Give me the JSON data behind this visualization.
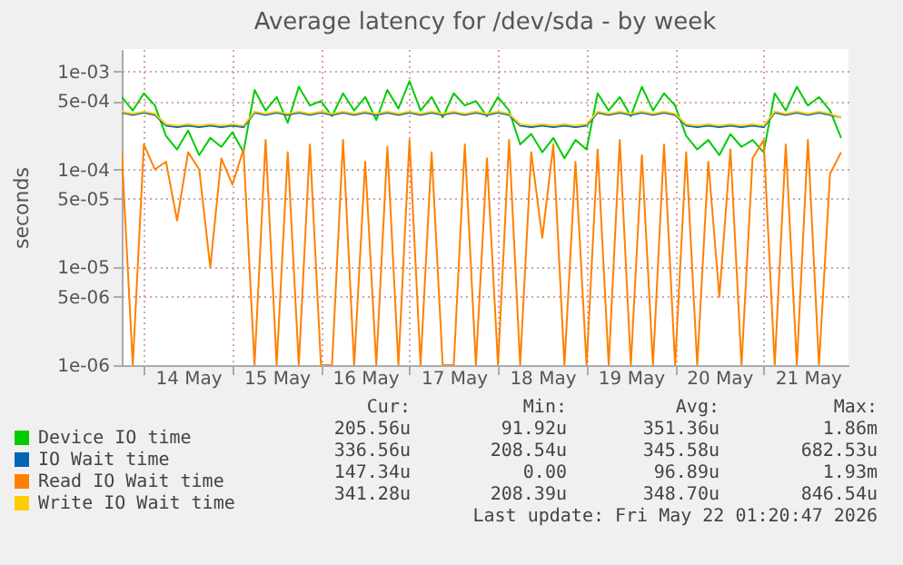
{
  "chart_data": {
    "type": "line",
    "title": "Average latency for /dev/sda - by week",
    "ylabel": "seconds",
    "log": "y",
    "grid": true,
    "legend": "bottom left",
    "marker": "none",
    "line_style": "solid",
    "ylim": [
      1e-06,
      0.0017
    ],
    "yticks": [
      {
        "value": 1e-06,
        "label": "1e-06"
      },
      {
        "value": 5e-06,
        "label": "5e-06"
      },
      {
        "value": 1e-05,
        "label": "1e-05"
      },
      {
        "value": 5e-05,
        "label": "5e-05"
      },
      {
        "value": 0.0001,
        "label": "1e-04"
      },
      {
        "value": 0.0005,
        "label": "5e-04"
      },
      {
        "value": 0.001,
        "label": "1e-03"
      }
    ],
    "xlim": [
      "2026-05-13T18:00",
      "2026-05-21T23:00"
    ],
    "xticks": [
      {
        "value": "2026-05-14T00:00",
        "label": null
      },
      {
        "value": "2026-05-14T12:00",
        "label": "14 May"
      },
      {
        "value": "2026-05-15T00:00",
        "label": null
      },
      {
        "value": "2026-05-15T12:00",
        "label": "15 May"
      },
      {
        "value": "2026-05-16T00:00",
        "label": null
      },
      {
        "value": "2026-05-16T12:00",
        "label": "16 May"
      },
      {
        "value": "2026-05-17T00:00",
        "label": null
      },
      {
        "value": "2026-05-17T12:00",
        "label": "17 May"
      },
      {
        "value": "2026-05-18T00:00",
        "label": null
      },
      {
        "value": "2026-05-18T12:00",
        "label": "18 May"
      },
      {
        "value": "2026-05-19T00:00",
        "label": null
      },
      {
        "value": "2026-05-19T12:00",
        "label": "19 May"
      },
      {
        "value": "2026-05-20T00:00",
        "label": null
      },
      {
        "value": "2026-05-20T12:00",
        "label": "20 May"
      },
      {
        "value": "2026-05-21T00:00",
        "label": null
      },
      {
        "value": "2026-05-21T12:00",
        "label": "21 May"
      }
    ],
    "x": [
      "2026-05-13T18:00",
      "2026-05-13T21:00",
      "2026-05-14T00:00",
      "2026-05-14T03:00",
      "2026-05-14T06:00",
      "2026-05-14T09:00",
      "2026-05-14T12:00",
      "2026-05-14T15:00",
      "2026-05-14T18:00",
      "2026-05-14T21:00",
      "2026-05-15T00:00",
      "2026-05-15T03:00",
      "2026-05-15T06:00",
      "2026-05-15T09:00",
      "2026-05-15T12:00",
      "2026-05-15T15:00",
      "2026-05-15T18:00",
      "2026-05-15T21:00",
      "2026-05-16T00:00",
      "2026-05-16T03:00",
      "2026-05-16T06:00",
      "2026-05-16T09:00",
      "2026-05-16T12:00",
      "2026-05-16T15:00",
      "2026-05-16T18:00",
      "2026-05-16T21:00",
      "2026-05-17T00:00",
      "2026-05-17T03:00",
      "2026-05-17T06:00",
      "2026-05-17T09:00",
      "2026-05-17T12:00",
      "2026-05-17T15:00",
      "2026-05-17T18:00",
      "2026-05-17T21:00",
      "2026-05-18T00:00",
      "2026-05-18T03:00",
      "2026-05-18T06:00",
      "2026-05-18T09:00",
      "2026-05-18T12:00",
      "2026-05-18T15:00",
      "2026-05-18T18:00",
      "2026-05-18T21:00",
      "2026-05-19T00:00",
      "2026-05-19T03:00",
      "2026-05-19T06:00",
      "2026-05-19T09:00",
      "2026-05-19T12:00",
      "2026-05-19T15:00",
      "2026-05-19T18:00",
      "2026-05-19T21:00",
      "2026-05-20T00:00",
      "2026-05-20T03:00",
      "2026-05-20T06:00",
      "2026-05-20T09:00",
      "2026-05-20T12:00",
      "2026-05-20T15:00",
      "2026-05-20T18:00",
      "2026-05-20T21:00",
      "2026-05-21T00:00",
      "2026-05-21T03:00",
      "2026-05-21T06:00",
      "2026-05-21T09:00",
      "2026-05-21T12:00",
      "2026-05-21T15:00",
      "2026-05-21T18:00",
      "2026-05-21T21:00"
    ],
    "series": [
      {
        "name": "Device IO time",
        "color": "#00cc00",
        "values": [
          0.00055,
          0.0004,
          0.0006,
          0.00045,
          0.00022,
          0.00016,
          0.00025,
          0.00014,
          0.00021,
          0.00017,
          0.00024,
          0.00015,
          0.00065,
          0.0004,
          0.00055,
          0.0003,
          0.0007,
          0.00045,
          0.0005,
          0.00035,
          0.0006,
          0.0004,
          0.00055,
          0.00032,
          0.00065,
          0.00042,
          0.0008,
          0.0004,
          0.00055,
          0.00034,
          0.0006,
          0.00045,
          0.0005,
          0.00035,
          0.00055,
          0.0004,
          0.00018,
          0.00023,
          0.00015,
          0.00021,
          0.00013,
          0.0002,
          0.00016,
          0.0006,
          0.0004,
          0.00055,
          0.00035,
          0.0007,
          0.0004,
          0.0006,
          0.00045,
          0.00022,
          0.00016,
          0.0002,
          0.00014,
          0.00023,
          0.00017,
          0.0002,
          0.00015,
          0.0006,
          0.0004,
          0.0007,
          0.00045,
          0.00055,
          0.0004,
          0.00021
        ]
      },
      {
        "name": "IO Wait time",
        "color": "#0066b3",
        "values": [
          0.00038,
          0.00036,
          0.00038,
          0.00036,
          0.00028,
          0.00027,
          0.00028,
          0.00027,
          0.00028,
          0.00027,
          0.00028,
          0.00027,
          0.00038,
          0.00036,
          0.00038,
          0.00036,
          0.00038,
          0.00036,
          0.00038,
          0.00036,
          0.00038,
          0.00036,
          0.00038,
          0.00036,
          0.00038,
          0.00036,
          0.00038,
          0.00036,
          0.00038,
          0.00036,
          0.00038,
          0.00036,
          0.00038,
          0.00036,
          0.00038,
          0.00036,
          0.00028,
          0.00027,
          0.00028,
          0.00027,
          0.00028,
          0.00027,
          0.00028,
          0.00038,
          0.00036,
          0.00038,
          0.00036,
          0.00038,
          0.00036,
          0.00038,
          0.00036,
          0.00028,
          0.00027,
          0.00028,
          0.00027,
          0.00028,
          0.00027,
          0.00028,
          0.00027,
          0.00038,
          0.00036,
          0.00038,
          0.00036,
          0.00038,
          0.00036,
          0.00034
        ]
      },
      {
        "name": "Read IO Wait time",
        "color": "#ff8000",
        "values": [
          0.00015,
          1e-06,
          0.00018,
          0.0001,
          0.00012,
          3e-05,
          0.00015,
          0.0001,
          1e-05,
          0.00013,
          7e-05,
          0.00016,
          1e-06,
          0.0002,
          1e-06,
          0.00015,
          1e-06,
          0.00018,
          1e-06,
          1e-06,
          0.0002,
          1e-06,
          0.00012,
          1e-06,
          0.00017,
          1e-06,
          0.0002,
          1e-06,
          0.00015,
          1e-06,
          1e-06,
          0.00018,
          1e-06,
          0.00013,
          1e-06,
          0.0002,
          1e-06,
          0.00015,
          2e-05,
          0.00018,
          1e-06,
          0.00012,
          1e-06,
          0.00016,
          1e-06,
          0.0002,
          1e-06,
          0.00014,
          1e-06,
          0.00018,
          1e-06,
          0.00015,
          1e-06,
          0.00012,
          5e-06,
          0.00016,
          1e-06,
          0.00013,
          0.0002,
          1e-06,
          0.00018,
          1e-06,
          0.0002,
          1e-06,
          9e-05,
          0.00015
        ]
      },
      {
        "name": "Write IO Wait time",
        "color": "#ffcc00",
        "values": [
          0.00039,
          0.00037,
          0.00039,
          0.00037,
          0.00029,
          0.00028,
          0.00029,
          0.00028,
          0.00029,
          0.00028,
          0.00029,
          0.00028,
          0.00039,
          0.00037,
          0.00039,
          0.00037,
          0.00039,
          0.00037,
          0.00039,
          0.00037,
          0.00039,
          0.00037,
          0.00039,
          0.00037,
          0.00039,
          0.00037,
          0.00039,
          0.00037,
          0.00039,
          0.00037,
          0.00039,
          0.00037,
          0.00039,
          0.00037,
          0.00039,
          0.00037,
          0.00029,
          0.00028,
          0.00029,
          0.00028,
          0.00029,
          0.00028,
          0.00029,
          0.00039,
          0.00037,
          0.00039,
          0.00037,
          0.00039,
          0.00037,
          0.00039,
          0.00037,
          0.00029,
          0.00028,
          0.00029,
          0.00028,
          0.00029,
          0.00028,
          0.00029,
          0.00028,
          0.00039,
          0.00037,
          0.00039,
          0.00037,
          0.00039,
          0.00037,
          0.00034
        ]
      }
    ],
    "annotations": [
      "Cur:",
      "Min:",
      "Avg:",
      "Max:",
      "205.56u",
      "91.92u",
      "351.36u",
      "1.86m",
      "336.56u",
      "208.54u",
      "345.58u",
      "682.53u",
      "147.34u",
      "0.00",
      "96.89u",
      "1.93m",
      "341.28u",
      "208.39u",
      "348.70u",
      "846.54u",
      "Last update: Fri May 22 01:20:47 2026"
    ]
  }
}
